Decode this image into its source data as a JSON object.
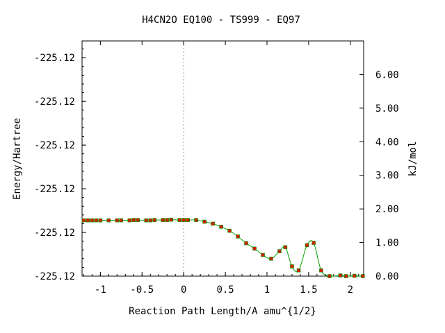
{
  "chart_data": {
    "type": "line",
    "title": "H4CN2O    EQ100 - TS999 - EQ97",
    "xlabel": "Reaction Path Length/A amu^{1/2}",
    "ylabel_left": "Energy/Hartree",
    "ylabel_right": "kJ/mol",
    "xlim": [
      -1.22,
      2.16
    ],
    "ylim_right": [
      0,
      7.0
    ],
    "x_ticks": [
      -1,
      -0.5,
      0,
      0.5,
      1,
      1.5,
      2
    ],
    "x_tick_labels": [
      "-1",
      "-0.5",
      "0",
      "0.5",
      "1",
      "1.5",
      "2"
    ],
    "left_tick_values": [
      0,
      1.3,
      2.6,
      3.9,
      5.2,
      6.5
    ],
    "left_tick_labels": [
      "-225.12",
      "-225.12",
      "-225.12",
      "-225.12",
      "-225.12",
      "-225.12"
    ],
    "right_tick_values": [
      0,
      1,
      2,
      3,
      4,
      5,
      6
    ],
    "right_tick_labels": [
      "0.00",
      "1.00",
      "2.00",
      "3.00",
      "4.00",
      "5.00",
      "6.00"
    ],
    "grid": false,
    "ts_marker_x": 0,
    "series": [
      {
        "color": "#00a000",
        "marker_color": "#cc2200",
        "points": [
          [
            -1.2,
            1.66
          ],
          [
            -1.15,
            1.66
          ],
          [
            -1.1,
            1.66
          ],
          [
            -1.05,
            1.66
          ],
          [
            -1.0,
            1.66
          ],
          [
            -0.9,
            1.66
          ],
          [
            -0.8,
            1.66
          ],
          [
            -0.75,
            1.66
          ],
          [
            -0.65,
            1.66
          ],
          [
            -0.6,
            1.67
          ],
          [
            -0.55,
            1.67
          ],
          [
            -0.45,
            1.66
          ],
          [
            -0.4,
            1.66
          ],
          [
            -0.35,
            1.67
          ],
          [
            -0.25,
            1.67
          ],
          [
            -0.2,
            1.67
          ],
          [
            -0.15,
            1.68
          ],
          [
            -0.05,
            1.67
          ],
          [
            0.0,
            1.67
          ],
          [
            0.05,
            1.67
          ],
          [
            0.15,
            1.67
          ],
          [
            0.25,
            1.62
          ],
          [
            0.35,
            1.56
          ],
          [
            0.45,
            1.47
          ],
          [
            0.55,
            1.35
          ],
          [
            0.65,
            1.18
          ],
          [
            0.75,
            0.98
          ],
          [
            0.85,
            0.82
          ],
          [
            0.95,
            0.63
          ],
          [
            1.05,
            0.52
          ],
          [
            1.15,
            0.74
          ],
          [
            1.22,
            0.86
          ],
          [
            1.3,
            0.29
          ],
          [
            1.38,
            0.17
          ],
          [
            1.48,
            0.92
          ],
          [
            1.56,
            0.99
          ],
          [
            1.65,
            0.17
          ],
          [
            1.75,
            0.0
          ],
          [
            1.88,
            0.02
          ],
          [
            1.95,
            0.0
          ],
          [
            2.05,
            0.01
          ],
          [
            2.15,
            0.0
          ]
        ]
      }
    ]
  }
}
